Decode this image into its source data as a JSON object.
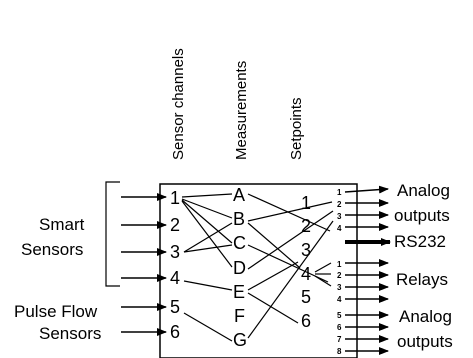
{
  "headers": {
    "sensor_channels": "Sensor channels",
    "measurements": "Measurements",
    "setpoints": "Setpoints"
  },
  "inputs": {
    "smart_sensors_line1": "Smart",
    "smart_sensors_line2": "Sensors",
    "pulse_flow_line1": "Pulse Flow",
    "pulse_flow_line2": "Sensors"
  },
  "channels": [
    "1",
    "2",
    "3",
    "4",
    "5",
    "6"
  ],
  "measurements": [
    "A",
    "B",
    "C",
    "D",
    "E",
    "F",
    "G"
  ],
  "setpoints": [
    "1",
    "2",
    "3",
    "4",
    "5",
    "6"
  ],
  "port_numbers": {
    "analog_top": [
      "1",
      "2",
      "3",
      "4"
    ],
    "relays": [
      "1",
      "2",
      "3",
      "4"
    ],
    "analog_bottom": [
      "5",
      "6",
      "7",
      "8"
    ]
  },
  "outputs": {
    "analog_top_line1": "Analog",
    "analog_top_line2": "outputs",
    "rs232": "RS232",
    "relays": "Relays",
    "analog_bottom_line1": "Analog",
    "analog_bottom_line2": "outputs"
  }
}
